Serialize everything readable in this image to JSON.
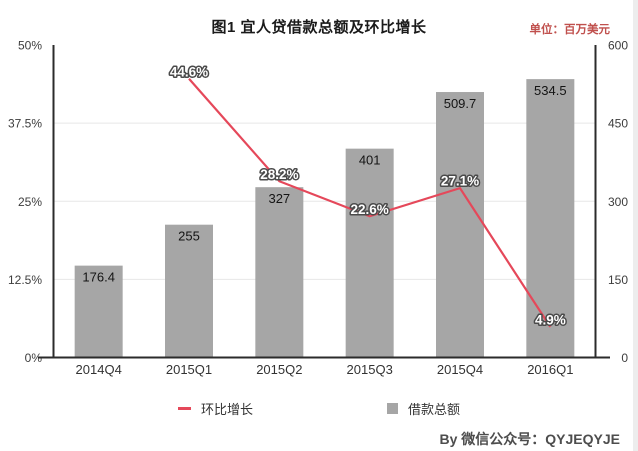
{
  "header": {
    "title": "图1  宜人贷借款总额及环比增长",
    "unit": "单位：百万美元",
    "unit_color": "#c0504d"
  },
  "chart_data": {
    "type": "bar",
    "categories": [
      "2014Q4",
      "2015Q1",
      "2015Q2",
      "2015Q3",
      "2015Q4",
      "2016Q1"
    ],
    "series": [
      {
        "name": "借款总额",
        "type": "bar",
        "axis": "right",
        "values": [
          176.4,
          255,
          327,
          401,
          509.7,
          534.5
        ],
        "labels": [
          "176.4",
          "255",
          "327",
          "401",
          "509.7",
          "534.5"
        ],
        "color": "#a6a6a6"
      },
      {
        "name": "环比增长",
        "type": "line",
        "axis": "left",
        "values": [
          null,
          44.6,
          28.2,
          22.6,
          27.1,
          4.9
        ],
        "labels": [
          null,
          "44.6%",
          "28.2%",
          "22.6%",
          "27.1%",
          "4.9%"
        ],
        "color": "#e5485a"
      }
    ],
    "left_axis": {
      "ticks": [
        "0%",
        "12.5%",
        "25%",
        "37.5%",
        "50%"
      ],
      "min": 0,
      "max": 50
    },
    "right_axis": {
      "ticks": [
        "0",
        "150",
        "300",
        "450",
        "600"
      ],
      "min": 0,
      "max": 600
    },
    "grid": true,
    "legend_position": "bottom",
    "title": "图1  宜人贷借款总额及环比增长",
    "unit": "百万美元"
  },
  "legend": {
    "items": [
      {
        "label": "环比增长",
        "marker": "line",
        "color": "#e5485a"
      },
      {
        "label": "借款总额",
        "marker": "square",
        "color": "#a6a6a6"
      }
    ]
  },
  "footer": {
    "credit": "By  微信公众号：QYJEQYJE"
  }
}
